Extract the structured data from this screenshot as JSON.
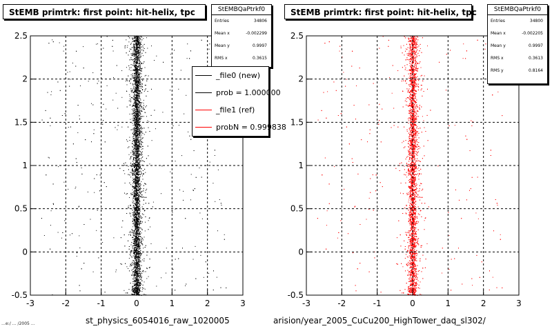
{
  "colors": {
    "new": "#000000",
    "ref": "#ff0000"
  },
  "panels": [
    {
      "title": "StEMB primtrk: first point: hit-helix, tpc",
      "stats": {
        "name": "StEMBQaPtrkf0",
        "rows": [
          {
            "key": "Entries",
            "value": "34806"
          },
          {
            "key": "Mean x",
            "value": "-0.002299"
          },
          {
            "key": "Mean y",
            "value": "0.9997"
          },
          {
            "key": "RMS x",
            "value": "0.3615"
          }
        ]
      },
      "xlabel": "st_physics_6054016_raw_1020005"
    },
    {
      "title": "StEMB primtrk: first point: hit-helix, tpc",
      "stats": {
        "name": "StEMBQaPtrkf0",
        "rows": [
          {
            "key": "Entries",
            "value": "34800"
          },
          {
            "key": "Mean x",
            "value": "-0.002205"
          },
          {
            "key": "Mean y",
            "value": "0.9997"
          },
          {
            "key": "RMS x",
            "value": "0.3613"
          },
          {
            "key": "RMS y",
            "value": "0.8164"
          }
        ]
      },
      "xlabel": "arision/year_2005_CuCu200_HighTower_daq_sl302/"
    }
  ],
  "legend": [
    {
      "label": "_file0 (new)",
      "color": "#000000"
    },
    {
      "label": "prob = 1.000000",
      "color": "#000000"
    },
    {
      "label": "_file1 (ref)",
      "color": "#ff0000"
    },
    {
      "label": "probN = 0.999838",
      "color": "#ff0000"
    }
  ],
  "corner_tag": "…e:/ … /2005 …",
  "chart_data": [
    {
      "type": "scatter",
      "series": [
        {
          "name": "_file0 (new)",
          "color": "#000000",
          "entries": 34806,
          "mean_x": -0.002299,
          "rms_x": 0.3615,
          "mean_y": 0.9997
        }
      ],
      "xlim": [
        -3,
        3
      ],
      "ylim": [
        -0.5,
        2.5
      ],
      "x_ticks": [
        "-3",
        "-2",
        "-1",
        "0",
        "1",
        "2",
        "3"
      ],
      "y_ticks": [
        "-0.5",
        "0",
        "0.5",
        "1",
        "1.5",
        "2",
        "2.5"
      ],
      "grid": true
    },
    {
      "type": "scatter",
      "series": [
        {
          "name": "_file1 (ref)",
          "color": "#ff0000",
          "entries": 34800,
          "mean_x": -0.002205,
          "rms_x": 0.3613,
          "mean_y": 0.9997,
          "rms_y": 0.8164
        }
      ],
      "xlim": [
        -3,
        3
      ],
      "ylim": [
        -0.5,
        2.5
      ],
      "x_ticks": [
        "-3",
        "-2",
        "-1",
        "0",
        "1",
        "2",
        "3"
      ],
      "y_ticks": [
        "-0.5",
        "0",
        "0.5",
        "1",
        "1.5",
        "2",
        "2.5"
      ],
      "grid": true
    }
  ]
}
